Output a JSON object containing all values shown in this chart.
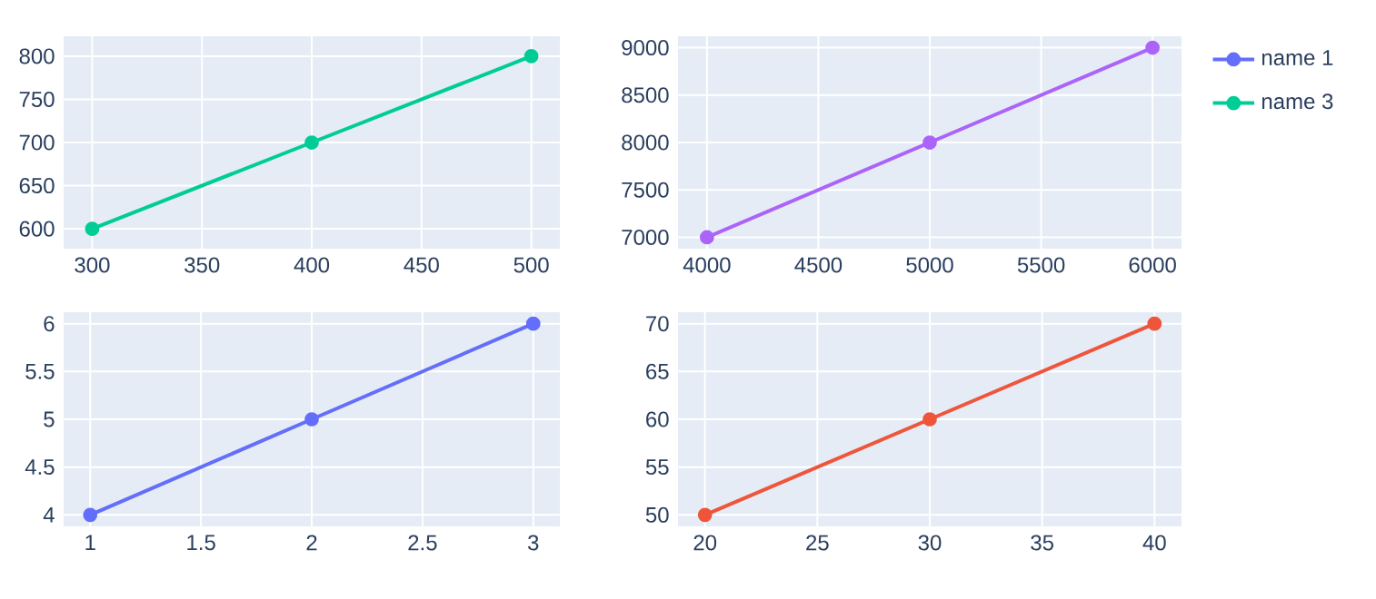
{
  "chart_data": [
    {
      "type": "line",
      "x": [
        300,
        400,
        500
      ],
      "series": [
        {
          "name": "name 3",
          "color": "#00cc96",
          "values": [
            600,
            700,
            800
          ]
        }
      ],
      "xlim": [
        287,
        513
      ],
      "ylim": [
        577,
        823
      ],
      "xticks": [
        300,
        350,
        400,
        450,
        500
      ],
      "yticks": [
        600,
        650,
        700,
        750,
        800
      ],
      "grid": true,
      "marker": "circle",
      "legend": "top right"
    },
    {
      "type": "line",
      "x": [
        4000,
        5000,
        6000
      ],
      "series": [
        {
          "color": "#ab63fa",
          "values": [
            7000,
            8000,
            9000
          ]
        }
      ],
      "xlim": [
        3870,
        6130
      ],
      "ylim": [
        6880,
        9120
      ],
      "xticks": [
        4000,
        4500,
        5000,
        5500,
        6000
      ],
      "yticks": [
        7000,
        7500,
        8000,
        8500,
        9000
      ],
      "grid": true,
      "marker": "circle"
    },
    {
      "type": "line",
      "x": [
        1,
        2,
        3
      ],
      "series": [
        {
          "name": "name 1",
          "color": "#636efa",
          "values": [
            4,
            5,
            6
          ]
        }
      ],
      "xlim": [
        0.88,
        3.12
      ],
      "ylim": [
        3.88,
        6.12
      ],
      "xticks": [
        1,
        1.5,
        2,
        2.5,
        3
      ],
      "yticks": [
        4,
        4.5,
        5,
        5.5,
        6
      ],
      "grid": true,
      "marker": "circle",
      "legend": "top right"
    },
    {
      "type": "line",
      "x": [
        20,
        30,
        40
      ],
      "series": [
        {
          "color": "#ef553b",
          "values": [
            50,
            60,
            70
          ]
        }
      ],
      "xlim": [
        18.8,
        41.2
      ],
      "ylim": [
        48.8,
        71.2
      ],
      "xticks": [
        20,
        25,
        30,
        35,
        40
      ],
      "yticks": [
        50,
        55,
        60,
        65,
        70
      ],
      "grid": true,
      "marker": "circle"
    }
  ]
}
